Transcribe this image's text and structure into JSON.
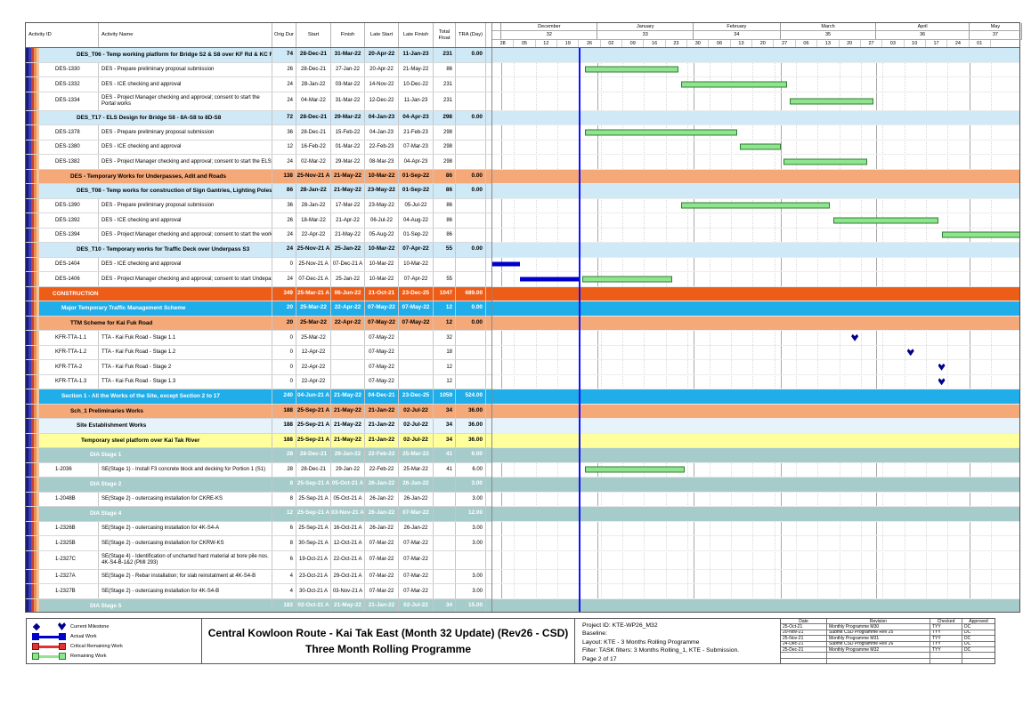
{
  "title": {
    "line1": "Central Kowloon Route - Kai Tak East (Month 32 Update) (Rev26 - CSD)",
    "line2": "Three Month Rolling Programme"
  },
  "legend": {
    "items": [
      {
        "icon": "milestone-marker",
        "label": "Current Milestone"
      },
      {
        "icon": "actual-work-bar",
        "label": "Actual Work"
      },
      {
        "icon": "critical-remaining-work-bar",
        "label": "Critical Remaining Work"
      },
      {
        "icon": "remaining-work-bar",
        "label": "Remaining Work"
      }
    ]
  },
  "info": {
    "project_id": "Project ID: KTE-WP26_M32",
    "baseline": "Baseline:",
    "layout": "Layout: KTE - 3 Months Rolling Programme",
    "filter": "Filter: TASK filters: 3 Months Rolling_1, KTE - Submission.",
    "page": "Page 2 of 17"
  },
  "revisions": {
    "columns": [
      "Date",
      "Revision",
      "Checked",
      "Approved"
    ],
    "rows": [
      [
        "25-Oct-21",
        "Monthly Programme M30",
        "TYY",
        "DC"
      ],
      [
        "20-Nov-21",
        "Submit CSD Programme Rev 25",
        "TYY",
        "DC"
      ],
      [
        "25-Nov-21",
        "Monthly Programme M31",
        "TYY",
        "DC"
      ],
      [
        "24-Dec-21",
        "Submit CSD Programme Rev 26",
        "TYY",
        "DC"
      ],
      [
        "25-Dec-21",
        "Monthly Programme M32",
        "TYY",
        "DC"
      ],
      [
        "",
        "",
        "",
        ""
      ],
      [
        "",
        "",
        "",
        ""
      ]
    ]
  },
  "colors": {
    "remaining_work": "#8fe58f",
    "actual_work": "#0000cc",
    "critical_work": "#e23333",
    "milestone": "#00008b",
    "data_date_line": "#1212ff",
    "construction_row": "#ee5d18",
    "section_blue_row": "#1faee9",
    "orange_row": "#f5a878",
    "pale_blue_row": "#cfe9f7",
    "yellow_row": "#ffff9c",
    "teal_row": "#a5cbca"
  },
  "timeline": {
    "start": "28-Nov-21",
    "end": "18-May-22",
    "data_date": "26-Dec-21",
    "months": [
      {
        "label": "",
        "num": "",
        "from": "28-Nov-21",
        "to": "01-Dec-21"
      },
      {
        "label": "December",
        "num": "32",
        "from": "01-Dec-21",
        "to": "01-Jan-22"
      },
      {
        "label": "January",
        "num": "33",
        "from": "01-Jan-22",
        "to": "01-Feb-22"
      },
      {
        "label": "February",
        "num": "34",
        "from": "01-Feb-22",
        "to": "01-Mar-22"
      },
      {
        "label": "March",
        "num": "35",
        "from": "01-Mar-22",
        "to": "01-Apr-22"
      },
      {
        "label": "April",
        "num": "36",
        "from": "01-Apr-22",
        "to": "01-May-22"
      },
      {
        "label": "May",
        "num": "37",
        "from": "01-May-22",
        "to": "18-May-22"
      }
    ],
    "week_labels": [
      "28",
      "05",
      "12",
      "19",
      "26",
      "02",
      "09",
      "16",
      "23",
      "30",
      "06",
      "13",
      "20",
      "27",
      "06",
      "13",
      "20",
      "27",
      "03",
      "10",
      "17",
      "24",
      "01"
    ]
  },
  "table": {
    "columns": [
      {
        "label": "Activity ID"
      },
      {
        "label": "Activity Name"
      },
      {
        "label": "Orig Dur"
      },
      {
        "label": "Start"
      },
      {
        "label": "Finish"
      },
      {
        "label": "Late Start"
      },
      {
        "label": "Late Finish"
      },
      {
        "label": "Total Float"
      },
      {
        "label": "TRA (Day)"
      }
    ],
    "rows": [
      {
        "s": "b",
        "ind": 42,
        "nm": "DES_T06 - Temp working platform for Bridge S2 & S8 over KF Rd & KC Rd",
        "od": "74",
        "st": "28-Dec-21",
        "fn": "31-Mar-22",
        "ls": "20-Apr-22",
        "lf": "11-Jan-23",
        "tf": "231",
        "tr": "0.00"
      },
      {
        "id": "DES-1330",
        "nm": "DES - Prepare preliminary proposal submission",
        "od": "26",
        "st": "28-Dec-21",
        "fn": "27-Jan-22",
        "ls": "20-Apr-22",
        "lf": "21-May-22",
        "tf": "86",
        "bars": [
          [
            "r",
            "28-Dec-21",
            "27-Jan-22"
          ]
        ]
      },
      {
        "id": "DES-1332",
        "nm": "DES - ICE checking and approval",
        "od": "24",
        "st": "28-Jan-22",
        "fn": "03-Mar-22",
        "ls": "14-Nov-22",
        "lf": "10-Dec-22",
        "tf": "231",
        "bars": [
          [
            "r",
            "28-Jan-22",
            "03-Mar-22"
          ]
        ]
      },
      {
        "id": "DES-1334",
        "nm": "DES - Project Manager checking and approval; consent to start the Portal works",
        "od": "24",
        "st": "04-Mar-22",
        "fn": "31-Mar-22",
        "ls": "12-Dec-22",
        "lf": "11-Jan-23",
        "tf": "231",
        "h": 2,
        "bars": [
          [
            "r",
            "04-Mar-22",
            "31-Mar-22"
          ]
        ]
      },
      {
        "s": "b",
        "ind": 42,
        "nm": "DES_T17 - ELS Design for Bridge S8 - 8A-S8 to 8D-S8",
        "od": "72",
        "st": "28-Dec-21",
        "fn": "29-Mar-22",
        "ls": "04-Jan-23",
        "lf": "04-Apr-23",
        "tf": "298",
        "tr": "0.00"
      },
      {
        "id": "DES-1378",
        "nm": "DES - Prepare preliminary proposal submission",
        "od": "36",
        "st": "28-Dec-21",
        "fn": "15-Feb-22",
        "ls": "04-Jan-23",
        "lf": "21-Feb-23",
        "tf": "298",
        "bars": [
          [
            "r",
            "28-Dec-21",
            "15-Feb-22"
          ]
        ]
      },
      {
        "id": "DES-1380",
        "nm": "DES - ICE checking and approval",
        "od": "12",
        "st": "16-Feb-22",
        "fn": "01-Mar-22",
        "ls": "22-Feb-23",
        "lf": "07-Mar-23",
        "tf": "298",
        "bars": [
          [
            "r",
            "16-Feb-22",
            "01-Mar-22"
          ]
        ]
      },
      {
        "id": "DES-1382",
        "nm": "DES - Project Manager checking and approval; consent to start the ELS works",
        "od": "24",
        "st": "02-Mar-22",
        "fn": "29-Mar-22",
        "ls": "08-Mar-23",
        "lf": "04-Apr-23",
        "tf": "298",
        "bars": [
          [
            "r",
            "02-Mar-22",
            "29-Mar-22"
          ]
        ]
      },
      {
        "s": "o",
        "ind": 35,
        "nm": "DES - Temporary Works for Underpasses, Adit and Roads",
        "od": "138",
        "st": "25-Nov-21 A",
        "fn": "21-May-22",
        "ls": "10-Mar-22",
        "lf": "01-Sep-22",
        "tf": "86",
        "tr": "0.00"
      },
      {
        "s": "b",
        "ind": 42,
        "nm": "DES_T08 - Temp works for construction of Sign Gantries, Lighting Poles & '",
        "od": "86",
        "st": "28-Jan-22",
        "fn": "21-May-22",
        "ls": "23-May-22",
        "lf": "01-Sep-22",
        "tf": "86",
        "tr": "0.00"
      },
      {
        "id": "DES-1390",
        "nm": "DES - Prepare preliminary proposal submission",
        "od": "36",
        "st": "28-Jan-22",
        "fn": "17-Mar-22",
        "ls": "23-May-22",
        "lf": "05-Jul-22",
        "tf": "86",
        "bars": [
          [
            "r",
            "28-Jan-22",
            "17-Mar-22"
          ]
        ]
      },
      {
        "id": "DES-1392",
        "nm": "DES - ICE checking and approval",
        "od": "26",
        "st": "18-Mar-22",
        "fn": "21-Apr-22",
        "ls": "06-Jul-22",
        "lf": "04-Aug-22",
        "tf": "86",
        "bars": [
          [
            "r",
            "18-Mar-22",
            "21-Apr-22"
          ]
        ]
      },
      {
        "id": "DES-1394",
        "nm": "DES - Project Manager checking and approval; consent to start the works",
        "od": "24",
        "st": "22-Apr-22",
        "fn": "21-May-22",
        "ls": "05-Aug-22",
        "lf": "01-Sep-22",
        "tf": "86",
        "bars": [
          [
            "r",
            "22-Apr-22",
            "21-May-22"
          ]
        ]
      },
      {
        "s": "b",
        "ind": 42,
        "nm": "DES_T10 - Temporary works for Traffic Deck over Underpass S3",
        "od": "24",
        "st": "25-Nov-21 A",
        "fn": "25-Jan-22",
        "ls": "10-Mar-22",
        "lf": "07-Apr-22",
        "tf": "55",
        "tr": "0.00"
      },
      {
        "id": "DES-1404",
        "nm": "DES - ICE checking and approval",
        "od": "0",
        "st": "25-Nov-21 A",
        "fn": "07-Dec-21 A",
        "ls": "10-Mar-22",
        "lf": "10-Mar-22",
        "bars": [
          [
            "a",
            "25-Nov-21",
            "07-Dec-21"
          ]
        ]
      },
      {
        "id": "DES-1406",
        "nm": "DES - Project Manager checking and approval; consent to start Undepass S3",
        "od": "24",
        "st": "07-Dec-21 A",
        "fn": "25-Jan-22",
        "ls": "10-Mar-22",
        "lf": "07-Apr-22",
        "tf": "55",
        "bars": [
          [
            "a",
            "07-Dec-21",
            "26-Dec-21"
          ],
          [
            "r",
            "27-Dec-21",
            "25-Jan-22"
          ]
        ]
      },
      {
        "s": "C",
        "ind": 15,
        "nm": "CONSTRUCTION",
        "od": "349",
        "st": "25-Mar-21 A",
        "fn": "06-Jun-22",
        "ls": "21-Oct-21",
        "lf": "23-Dec-25",
        "tf": "1047",
        "tr": "689.00"
      },
      {
        "s": "c",
        "ind": 25,
        "nm": "Major Temporary Traffic Management Scheme",
        "od": "20",
        "st": "25-Mar-22",
        "fn": "22-Apr-22",
        "ls": "07-May-22",
        "lf": "07-May-22",
        "tf": "12",
        "tr": "0.00"
      },
      {
        "s": "o",
        "ind": 35,
        "nm": "TTM Scheme for Kai Fuk Road",
        "od": "20",
        "st": "25-Mar-22",
        "fn": "22-Apr-22",
        "ls": "07-May-22",
        "lf": "07-May-22",
        "tf": "12",
        "tr": "0.00"
      },
      {
        "id": "KFR-TTA-1.1",
        "nm": "TTA - Kai Fuk Road - Stage 1.1",
        "od": "0",
        "st": "25-Mar-22",
        "ls": "07-May-22",
        "tf": "32",
        "ms": "25-Mar-22"
      },
      {
        "id": "KFR-TTA-1.2",
        "nm": "TTA - Kai Fuk Road - Stage 1.2",
        "od": "0",
        "st": "12-Apr-22",
        "ls": "07-May-22",
        "tf": "18",
        "ms": "12-Apr-22"
      },
      {
        "id": "KFR-TTA-2",
        "nm": "TTA - Kai Fuk Road - Stage 2",
        "od": "0",
        "st": "22-Apr-22",
        "ls": "07-May-22",
        "tf": "12",
        "ms": "22-Apr-22"
      },
      {
        "id": "KFR-TTA-1.3",
        "nm": "TTA - Kai Fuk Road - Stage 1.3",
        "od": "0",
        "st": "22-Apr-22",
        "ls": "07-May-22",
        "tf": "12",
        "ms": "22-Apr-22"
      },
      {
        "s": "c",
        "ind": 25,
        "nm": "Section 1 - All the Works of the Site, except Section 2 to 17",
        "od": "240",
        "st": "04-Jun-21 A",
        "fn": "21-May-22",
        "ls": "04-Dec-21",
        "lf": "23-Dec-25",
        "tf": "1059",
        "tr": "524.00"
      },
      {
        "s": "o",
        "ind": 35,
        "nm": "Sch_1 Preliminaries Works",
        "od": "188",
        "st": "25-Sep-21 A",
        "fn": "21-May-22",
        "ls": "21-Jan-22",
        "lf": "02-Jul-22",
        "tf": "34",
        "tr": "36.00"
      },
      {
        "s": "p",
        "ind": 42,
        "nm": "Site Establishment Works",
        "od": "188",
        "st": "25-Sep-21 A",
        "fn": "21-May-22",
        "ls": "21-Jan-22",
        "lf": "02-Jul-22",
        "tf": "34",
        "tr": "36.00"
      },
      {
        "s": "y",
        "ind": 47,
        "nm": "Temporary steel platform over Kai Tak River",
        "od": "188",
        "st": "25-Sep-21 A",
        "fn": "21-May-22",
        "ls": "21-Jan-22",
        "lf": "02-Jul-22",
        "tf": "34",
        "tr": "36.00"
      },
      {
        "s": "t",
        "ind": 57,
        "nm": "DIA Stage 1",
        "od": "28",
        "st": "28-Dec-21",
        "fn": "29-Jan-22",
        "ls": "22-Feb-22",
        "lf": "25-Mar-22",
        "tf": "41",
        "tr": "6.00"
      },
      {
        "id": "1-2036",
        "nm": "SE(Stage 1) - Install F3 concrete block and decking for Portion 1 (S1)",
        "od": "28",
        "st": "28-Dec-21",
        "fn": "29-Jan-22",
        "ls": "22-Feb-22",
        "lf": "25-Mar-22",
        "tf": "41",
        "tr": "6.00",
        "bars": [
          [
            "r",
            "28-Dec-21",
            "29-Jan-22"
          ]
        ]
      },
      {
        "s": "t",
        "ind": 57,
        "nm": "DIA Stage 2",
        "od": "8",
        "st": "25-Sep-21 A",
        "fn": "05-Oct-21 A",
        "ls": "26-Jan-22",
        "lf": "26-Jan-22",
        "tr": "3.00"
      },
      {
        "id": "1-2048B",
        "nm": "SE(Stage 2) - outercasing installation for CKRE-KS",
        "od": "8",
        "st": "25-Sep-21 A",
        "fn": "05-Oct-21 A",
        "ls": "26-Jan-22",
        "lf": "26-Jan-22",
        "tr": "3.00"
      },
      {
        "s": "t",
        "ind": 57,
        "nm": "DIA Stage 4",
        "od": "12",
        "st": "25-Sep-21 A",
        "fn": "03-Nov-21 A",
        "ls": "26-Jan-22",
        "lf": "07-Mar-22",
        "tr": "12.00"
      },
      {
        "id": "1-2326B",
        "nm": "SE(Stage 2) - outercasing installation for 4K-S4-A",
        "od": "6",
        "st": "25-Sep-21 A",
        "fn": "16-Oct-21 A",
        "ls": "26-Jan-22",
        "lf": "26-Jan-22",
        "tr": "3.00"
      },
      {
        "id": "1-2325B",
        "nm": "SE(Stage 2) - outercasing installation for CKRW-KS",
        "od": "8",
        "st": "30-Sep-21 A",
        "fn": "12-Oct-21 A",
        "ls": "07-Mar-22",
        "lf": "07-Mar-22",
        "tr": "3.00"
      },
      {
        "id": "1-2327C",
        "nm": "SE(Stage 4) - Identification of uncharted hard material at bore pile nos. 4K-S4-B-1&2 (PMI 293)",
        "od": "6",
        "st": "19-Oct-21 A",
        "fn": "22-Oct-21 A",
        "ls": "07-Mar-22",
        "lf": "07-Mar-22",
        "h": 2
      },
      {
        "id": "1-2327A",
        "nm": "SE(Stage 2) - Rebar installation; for slab reinstatment at 4K-S4-B",
        "od": "4",
        "st": "23-Oct-21 A",
        "fn": "29-Oct-21 A",
        "ls": "07-Mar-22",
        "lf": "07-Mar-22",
        "tr": "3.00"
      },
      {
        "id": "1-2327B",
        "nm": "SE(Stage 2) - outercasing installation for 4K-S4-B",
        "od": "4",
        "st": "30-Oct-21 A",
        "fn": "03-Nov-21 A",
        "ls": "07-Mar-22",
        "lf": "07-Mar-22",
        "tr": "3.00"
      },
      {
        "s": "t",
        "ind": 57,
        "nm": "DIA Stage 5",
        "od": "183",
        "st": "02-Oct-21 A",
        "fn": "21-May-22",
        "ls": "21-Jan-22",
        "lf": "02-Jul-22",
        "tf": "34",
        "tr": "15.00"
      }
    ]
  },
  "chart_data": {
    "type": "gantt",
    "timescale": {
      "unit": "week",
      "start": "28-Nov-21",
      "end": "18-May-22",
      "data_date": "26-Dec-21",
      "months": [
        "December",
        "January",
        "February",
        "March",
        "April",
        "May"
      ],
      "month_numbers": [
        "32",
        "33",
        "34",
        "35",
        "36",
        "37"
      ]
    },
    "bars": [
      {
        "activity": "DES-1330",
        "kind": "remaining",
        "start": "28-Dec-21",
        "finish": "27-Jan-22"
      },
      {
        "activity": "DES-1332",
        "kind": "remaining",
        "start": "28-Jan-22",
        "finish": "03-Mar-22"
      },
      {
        "activity": "DES-1334",
        "kind": "remaining",
        "start": "04-Mar-22",
        "finish": "31-Mar-22"
      },
      {
        "activity": "DES-1378",
        "kind": "remaining",
        "start": "28-Dec-21",
        "finish": "15-Feb-22"
      },
      {
        "activity": "DES-1380",
        "kind": "remaining",
        "start": "16-Feb-22",
        "finish": "01-Mar-22"
      },
      {
        "activity": "DES-1382",
        "kind": "remaining",
        "start": "02-Mar-22",
        "finish": "29-Mar-22"
      },
      {
        "activity": "DES-1390",
        "kind": "remaining",
        "start": "28-Jan-22",
        "finish": "17-Mar-22"
      },
      {
        "activity": "DES-1392",
        "kind": "remaining",
        "start": "18-Mar-22",
        "finish": "21-Apr-22"
      },
      {
        "activity": "DES-1394",
        "kind": "remaining",
        "start": "22-Apr-22",
        "finish": "21-May-22"
      },
      {
        "activity": "DES-1404",
        "kind": "actual",
        "start": "25-Nov-21",
        "finish": "07-Dec-21"
      },
      {
        "activity": "DES-1406",
        "kind": "actual",
        "start": "07-Dec-21",
        "finish": "26-Dec-21"
      },
      {
        "activity": "DES-1406",
        "kind": "remaining",
        "start": "27-Dec-21",
        "finish": "25-Jan-22"
      },
      {
        "activity": "1-2036",
        "kind": "remaining",
        "start": "28-Dec-21",
        "finish": "29-Jan-22"
      }
    ],
    "milestones": [
      {
        "activity": "KFR-TTA-1.1",
        "date": "25-Mar-22"
      },
      {
        "activity": "KFR-TTA-1.2",
        "date": "12-Apr-22"
      },
      {
        "activity": "KFR-TTA-2",
        "date": "22-Apr-22"
      },
      {
        "activity": "KFR-TTA-1.3",
        "date": "22-Apr-22"
      }
    ]
  }
}
